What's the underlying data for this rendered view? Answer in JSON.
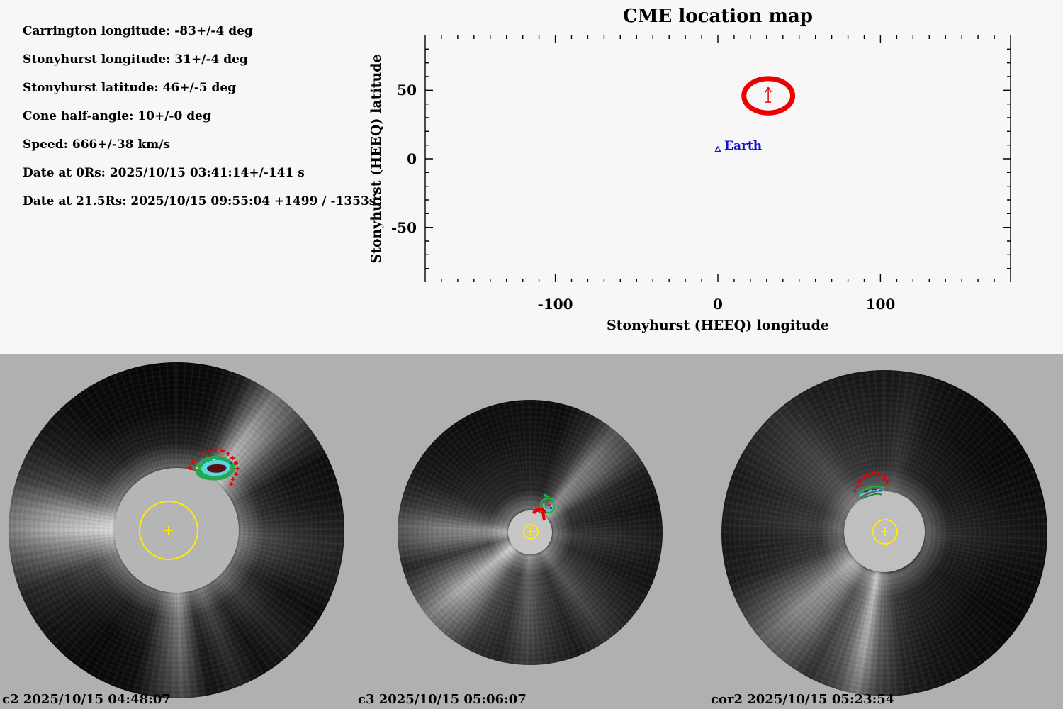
{
  "window_title": "CME location map",
  "colors": {
    "background_top": "#f7f7f7",
    "background_bottom": "#b0b0b0",
    "text": "#000000",
    "cme_red": "#ee0000",
    "earth_blue": "#1414c8",
    "sun_yellow": "#ffec00",
    "contour_green": "#1eb544",
    "contour_cyan": "#58d6e8"
  },
  "parameters": {
    "lines": [
      "Carrington longitude: -83+/-4 deg",
      "Stonyhurst longitude: 31+/-4 deg",
      "Stonyhurst latitude: 46+/-5 deg",
      "Cone half-angle: 10+/-0 deg",
      "Speed: 666+/-38 km/s",
      "Date at 0Rs: 2025/10/15 03:41:14+/-141 s",
      "Date at 21.5Rs: 2025/10/15 09:55:04 +1499 / -1353s"
    ]
  },
  "chart_data": {
    "type": "scatter",
    "title": "CME location map",
    "xlabel": "Stonyhurst (HEEQ) longitude",
    "ylabel": "Stonyhurst (HEEQ) latitude",
    "xlim": [
      -180,
      180
    ],
    "ylim": [
      -90,
      90
    ],
    "grid": false,
    "minor_tick_step": 10,
    "x_ticks": [
      {
        "value": -100,
        "label": "-100"
      },
      {
        "value": 0,
        "label": "0"
      },
      {
        "value": 100,
        "label": "100"
      }
    ],
    "y_ticks": [
      {
        "value": -50,
        "label": "-50"
      },
      {
        "value": 0,
        "label": "0"
      },
      {
        "value": 50,
        "label": "50"
      }
    ],
    "points": [
      {
        "name": "CME",
        "lon": 31,
        "lat": 46,
        "marker": "red-ellipse-with-arrow",
        "rx_deg": 15,
        "ry_deg": 12.5,
        "color": "#ee0000",
        "cone_half_angle_deg": 10
      },
      {
        "name": "Earth",
        "lon": 0,
        "lat": 7,
        "marker": "open-triangle",
        "label": "Earth",
        "color": "#1414c8"
      }
    ]
  },
  "panels": [
    {
      "id": "c2",
      "instrument": "c2",
      "timestamp": "2025/10/15 04:48:07",
      "label": "c2 2025/10/15 04:48:07"
    },
    {
      "id": "c3",
      "instrument": "c3",
      "timestamp": "2025/10/15 05:06:07",
      "label": "c3 2025/10/15 05:06:07"
    },
    {
      "id": "cor2",
      "instrument": "cor2",
      "timestamp": "2025/10/15 05:23:54",
      "label": "cor2 2025/10/15 05:23:54"
    }
  ]
}
